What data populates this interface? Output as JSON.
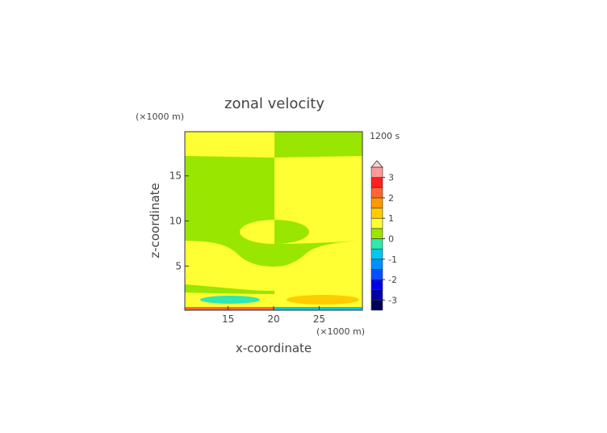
{
  "chart_data": {
    "type": "contour",
    "title": "zonal velocity",
    "x_label": "x-coordinate",
    "y_label": "z-coordinate",
    "x_unit_label": "(×1000 m)",
    "y_unit_label": "(×1000 m)",
    "time_label": "1200 s",
    "xlim": [
      10.25,
      29.75
    ],
    "xticks": [
      15,
      20,
      25
    ],
    "ylim": [
      0.1,
      19.9
    ],
    "yticks": [
      5,
      10,
      15
    ],
    "colorbar": {
      "levels": [
        -3.5,
        -3,
        -2.5,
        -2,
        -1.5,
        -1,
        -0.5,
        0,
        0.5,
        1,
        1.5,
        2,
        2.5,
        3,
        3.5
      ],
      "ticks": [
        -3,
        -2,
        -1,
        0,
        1,
        2,
        3
      ],
      "colors": [
        "#00005a",
        "#0000a8",
        "#0000e8",
        "#0050ff",
        "#0090ff",
        "#00c8f0",
        "#30e8b0",
        "#99e600",
        "#ffff33",
        "#ffcc00",
        "#ff9900",
        "#ff6633",
        "#ff2020",
        "#ff9a9a"
      ],
      "over_color": "#ffd0d0"
    }
  }
}
